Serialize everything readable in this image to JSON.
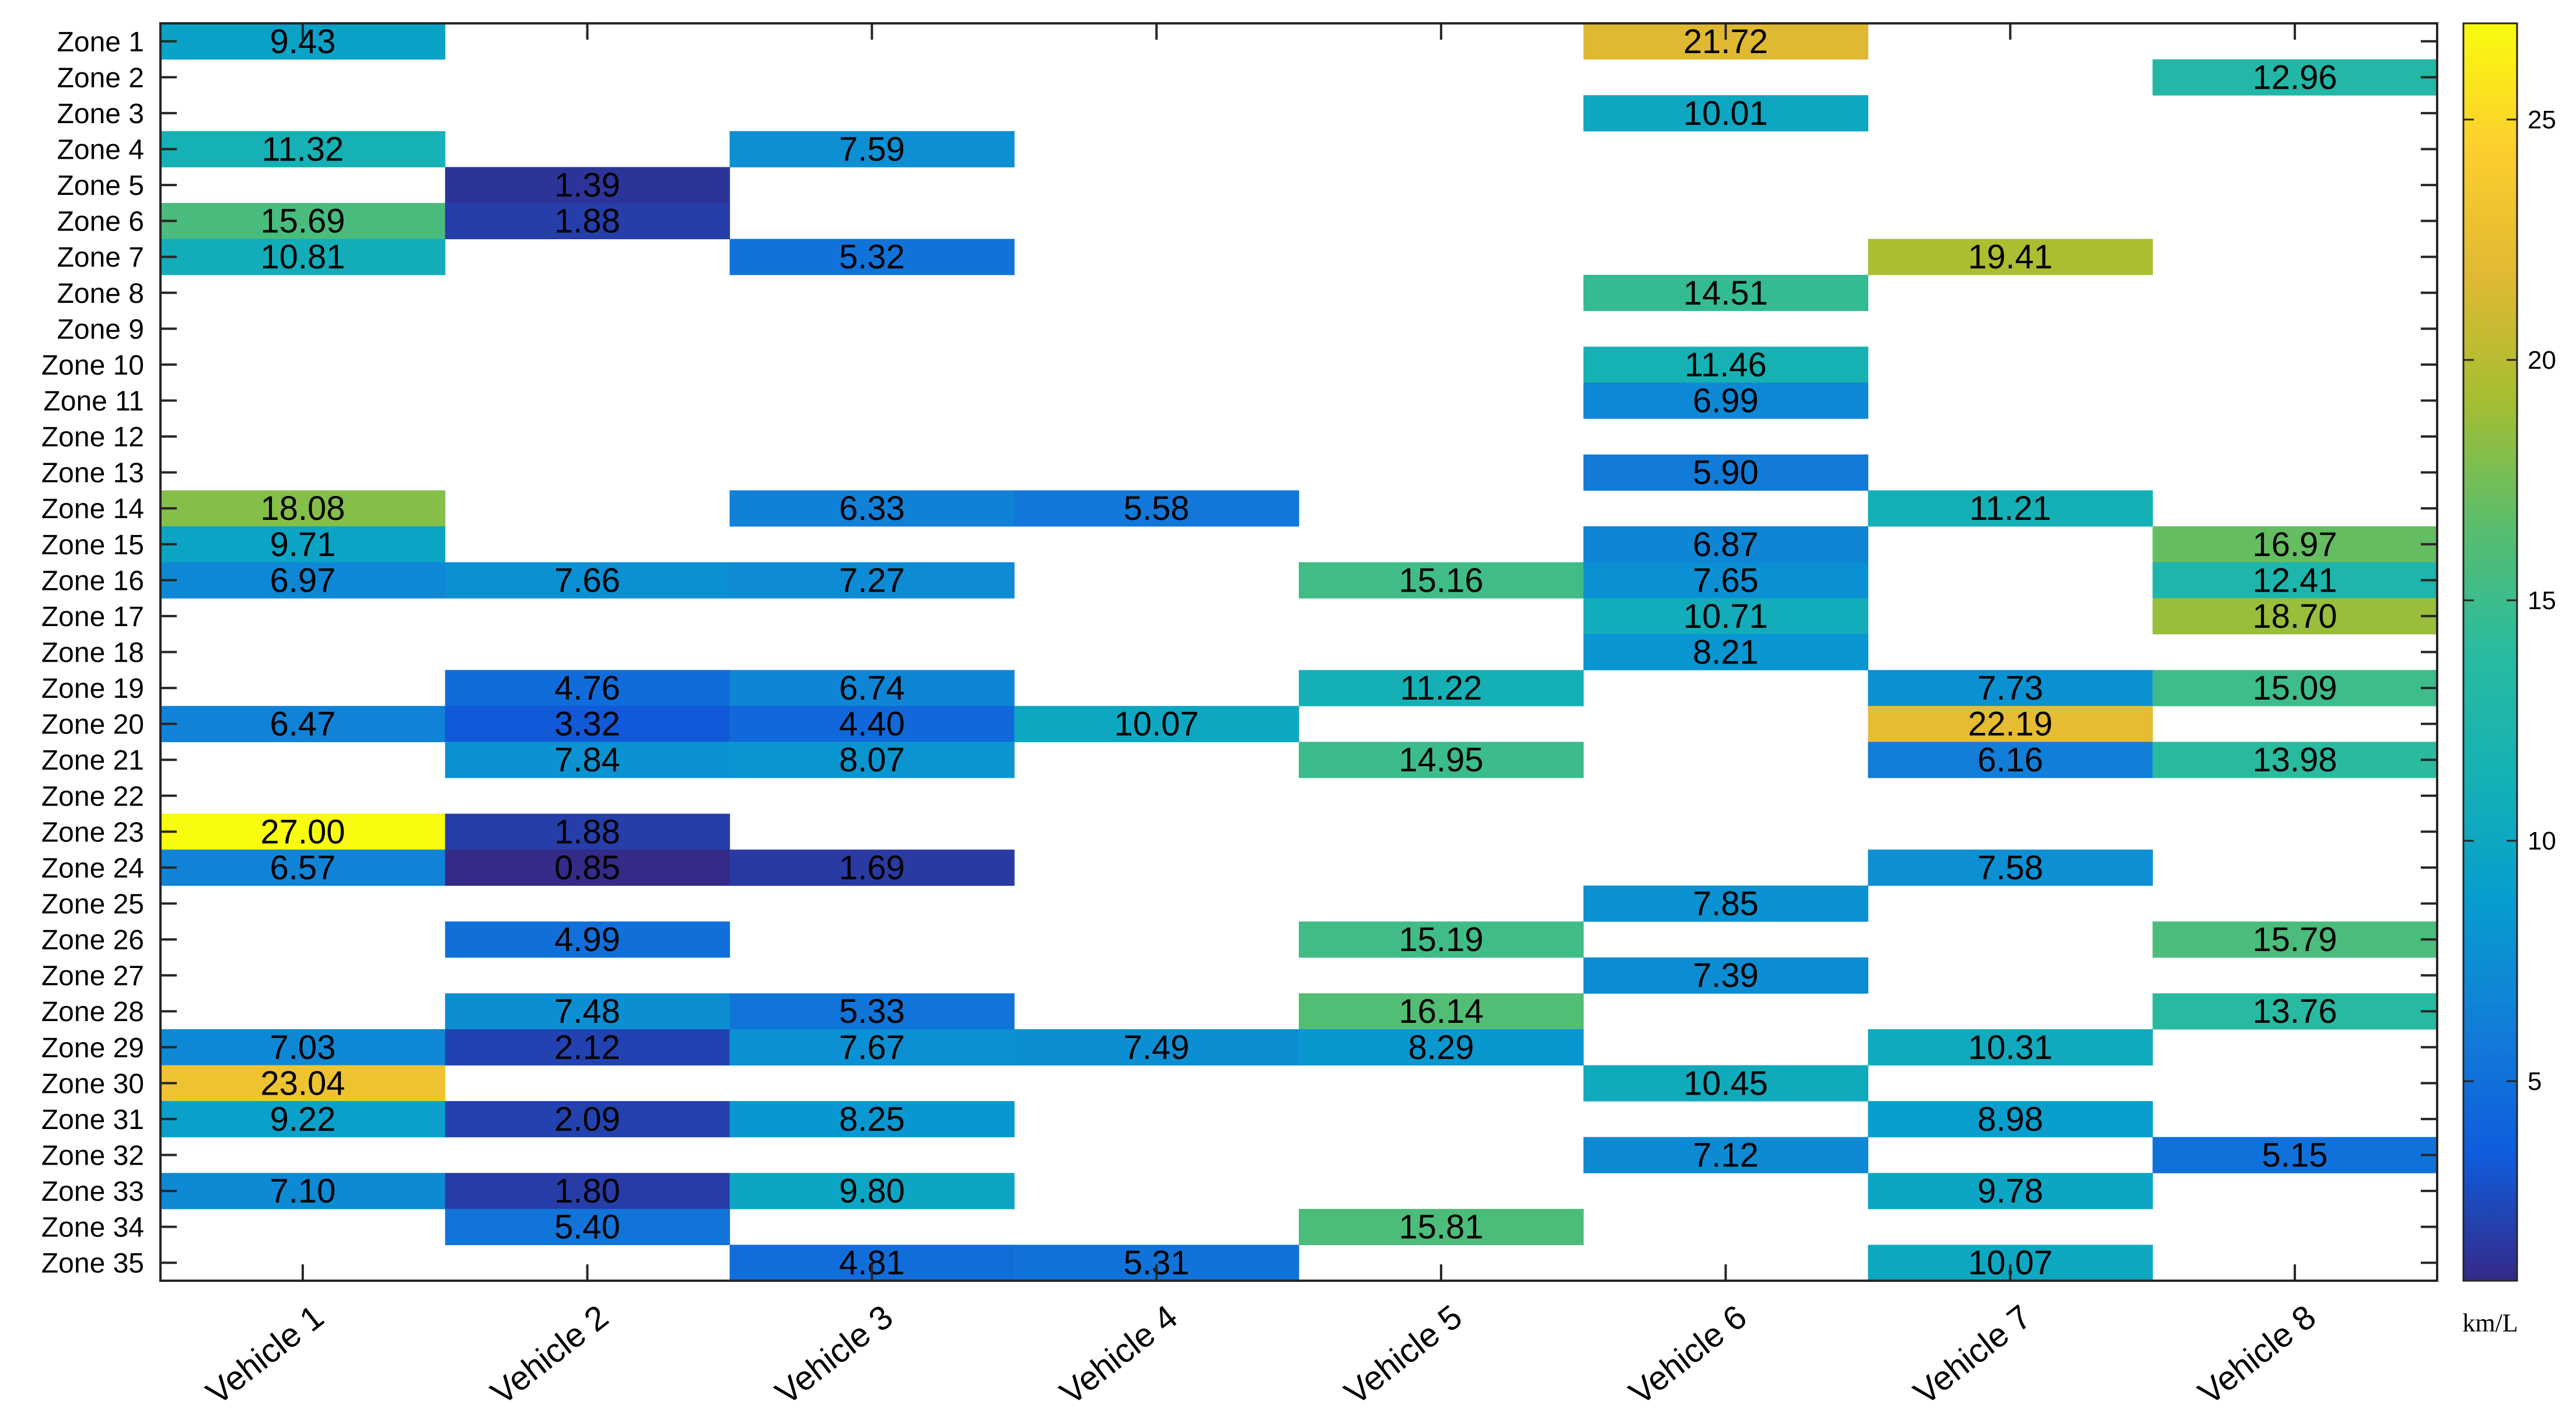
{
  "chart_data": {
    "type": "heatmap",
    "title": "",
    "xlabel": "",
    "ylabel": "",
    "categories_x": [
      "Vehicle 1",
      "Vehicle 2",
      "Vehicle 3",
      "Vehicle 4",
      "Vehicle 5",
      "Vehicle 6",
      "Vehicle 7",
      "Vehicle 8"
    ],
    "categories_y": [
      "Zone 1",
      "Zone 2",
      "Zone 3",
      "Zone 4",
      "Zone 5",
      "Zone 6",
      "Zone 7",
      "Zone 8",
      "Zone 9",
      "Zone 10",
      "Zone 11",
      "Zone 12",
      "Zone 13",
      "Zone 14",
      "Zone 15",
      "Zone 16",
      "Zone 17",
      "Zone 18",
      "Zone 19",
      "Zone 20",
      "Zone 21",
      "Zone 22",
      "Zone 23",
      "Zone 24",
      "Zone 25",
      "Zone 26",
      "Zone 27",
      "Zone 28",
      "Zone 29",
      "Zone 30",
      "Zone 31",
      "Zone 32",
      "Zone 33",
      "Zone 34",
      "Zone 35"
    ],
    "values": [
      [
        9.43,
        null,
        null,
        null,
        null,
        21.72,
        null,
        null
      ],
      [
        null,
        null,
        null,
        null,
        null,
        null,
        null,
        12.96
      ],
      [
        null,
        null,
        null,
        null,
        null,
        10.01,
        null,
        null
      ],
      [
        11.32,
        null,
        7.59,
        null,
        null,
        null,
        null,
        null
      ],
      [
        null,
        1.39,
        null,
        null,
        null,
        null,
        null,
        null
      ],
      [
        15.69,
        1.88,
        null,
        null,
        null,
        null,
        null,
        null
      ],
      [
        10.81,
        null,
        5.32,
        null,
        null,
        null,
        19.41,
        null
      ],
      [
        null,
        null,
        null,
        null,
        null,
        14.51,
        null,
        null
      ],
      [
        null,
        null,
        null,
        null,
        null,
        null,
        null,
        null
      ],
      [
        null,
        null,
        null,
        null,
        null,
        11.46,
        null,
        null
      ],
      [
        null,
        null,
        null,
        null,
        null,
        6.99,
        null,
        null
      ],
      [
        null,
        null,
        null,
        null,
        null,
        null,
        null,
        null
      ],
      [
        null,
        null,
        null,
        null,
        null,
        5.9,
        null,
        null
      ],
      [
        18.08,
        null,
        6.33,
        5.58,
        null,
        null,
        11.21,
        null
      ],
      [
        9.71,
        null,
        null,
        null,
        null,
        6.87,
        null,
        16.97
      ],
      [
        6.97,
        7.66,
        7.27,
        null,
        15.16,
        7.65,
        null,
        12.41
      ],
      [
        null,
        null,
        null,
        null,
        null,
        10.71,
        null,
        18.7
      ],
      [
        null,
        null,
        null,
        null,
        null,
        8.21,
        null,
        null
      ],
      [
        null,
        4.76,
        6.74,
        null,
        11.22,
        null,
        7.73,
        15.09
      ],
      [
        6.47,
        3.32,
        4.4,
        10.07,
        null,
        null,
        22.19,
        null
      ],
      [
        null,
        7.84,
        8.07,
        null,
        14.95,
        null,
        6.16,
        13.98
      ],
      [
        null,
        null,
        null,
        null,
        null,
        null,
        null,
        null
      ],
      [
        27.0,
        1.88,
        null,
        null,
        null,
        null,
        null,
        null
      ],
      [
        6.57,
        0.85,
        1.69,
        null,
        null,
        null,
        7.58,
        null
      ],
      [
        null,
        null,
        null,
        null,
        null,
        7.85,
        null,
        null
      ],
      [
        null,
        4.99,
        null,
        null,
        15.19,
        null,
        null,
        15.79
      ],
      [
        null,
        null,
        null,
        null,
        null,
        7.39,
        null,
        null
      ],
      [
        null,
        7.48,
        5.33,
        null,
        16.14,
        null,
        null,
        13.76
      ],
      [
        7.03,
        2.12,
        7.67,
        7.49,
        8.29,
        null,
        10.31,
        null
      ],
      [
        23.04,
        null,
        null,
        null,
        null,
        10.45,
        null,
        null
      ],
      [
        9.22,
        2.09,
        8.25,
        null,
        null,
        null,
        8.98,
        null
      ],
      [
        null,
        null,
        null,
        null,
        null,
        7.12,
        null,
        5.15
      ],
      [
        7.1,
        1.8,
        9.8,
        null,
        null,
        null,
        9.78,
        null
      ],
      [
        null,
        5.4,
        null,
        null,
        15.81,
        null,
        null,
        null
      ],
      [
        null,
        null,
        4.81,
        5.31,
        null,
        null,
        10.07,
        null
      ]
    ],
    "colorbar": {
      "label": "km/L",
      "range": [
        0.85,
        27.0
      ],
      "ticks": [
        5,
        10,
        15,
        20,
        25
      ],
      "colormap": "parula"
    }
  }
}
